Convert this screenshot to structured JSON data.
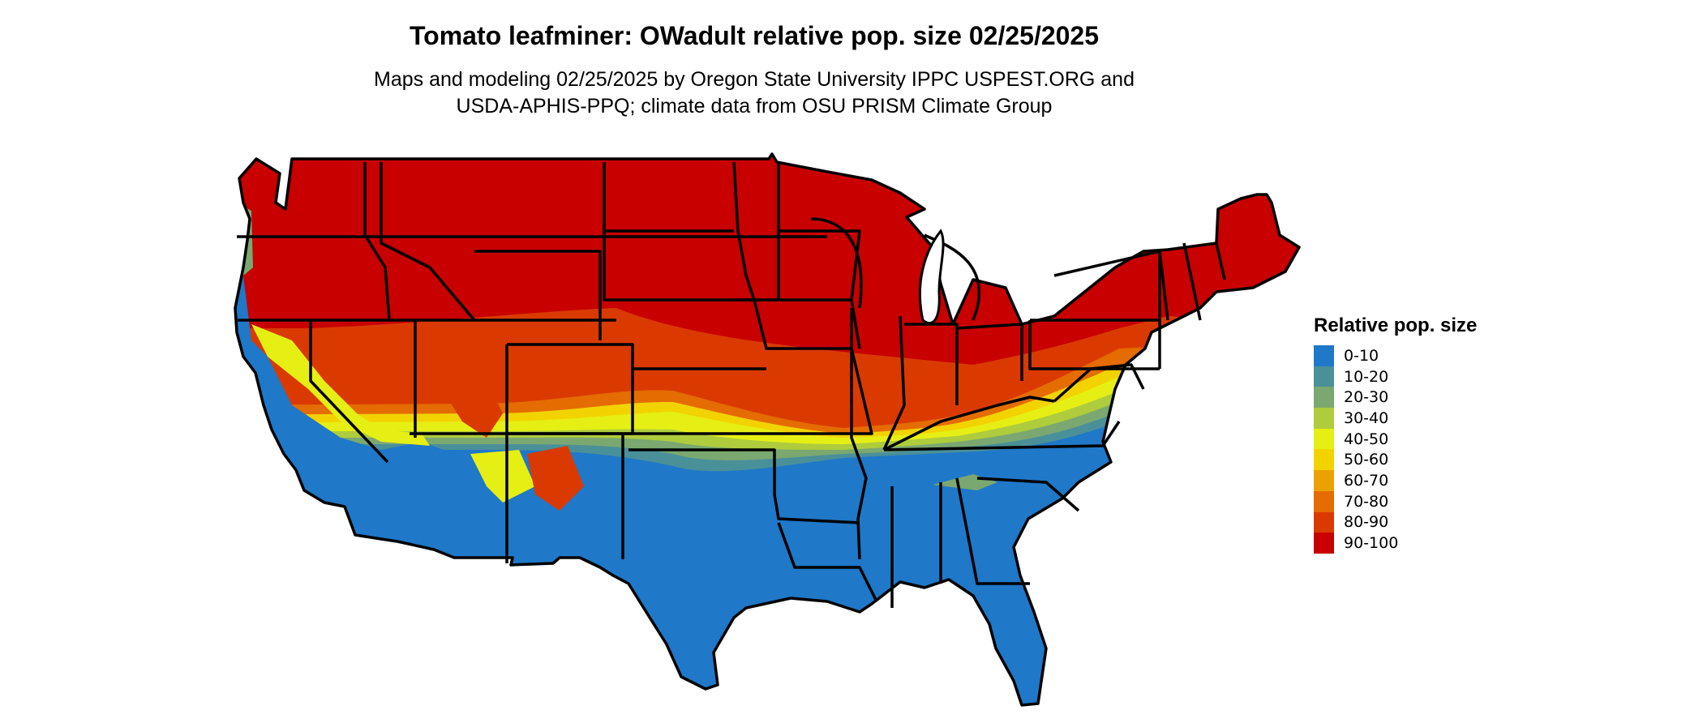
{
  "title": "Tomato leafminer: OWadult relative pop. size 02/25/2025",
  "subtitle_lines": [
    "Maps and modeling 02/25/2025 by Oregon State University IPPC USPEST.ORG and",
    "USDA-APHIS-PPQ; climate data from OSU PRISM Climate Group"
  ],
  "legend": {
    "title": "Relative pop. size",
    "items": [
      {
        "label": "0-10",
        "color": "#1f78c8"
      },
      {
        "label": "10-20",
        "color": "#4a9099"
      },
      {
        "label": "20-30",
        "color": "#7aa870"
      },
      {
        "label": "30-40",
        "color": "#aecc3c"
      },
      {
        "label": "40-50",
        "color": "#e6ef14"
      },
      {
        "label": "50-60",
        "color": "#f2d300"
      },
      {
        "label": "60-70",
        "color": "#eba200"
      },
      {
        "label": "70-80",
        "color": "#e56c00"
      },
      {
        "label": "80-90",
        "color": "#da3a00"
      },
      {
        "label": "90-100",
        "color": "#c80000"
      }
    ]
  },
  "map": {
    "region": "Contiguous United States",
    "colors": {
      "ocean": "#ffffff",
      "border": "#000000"
    }
  }
}
